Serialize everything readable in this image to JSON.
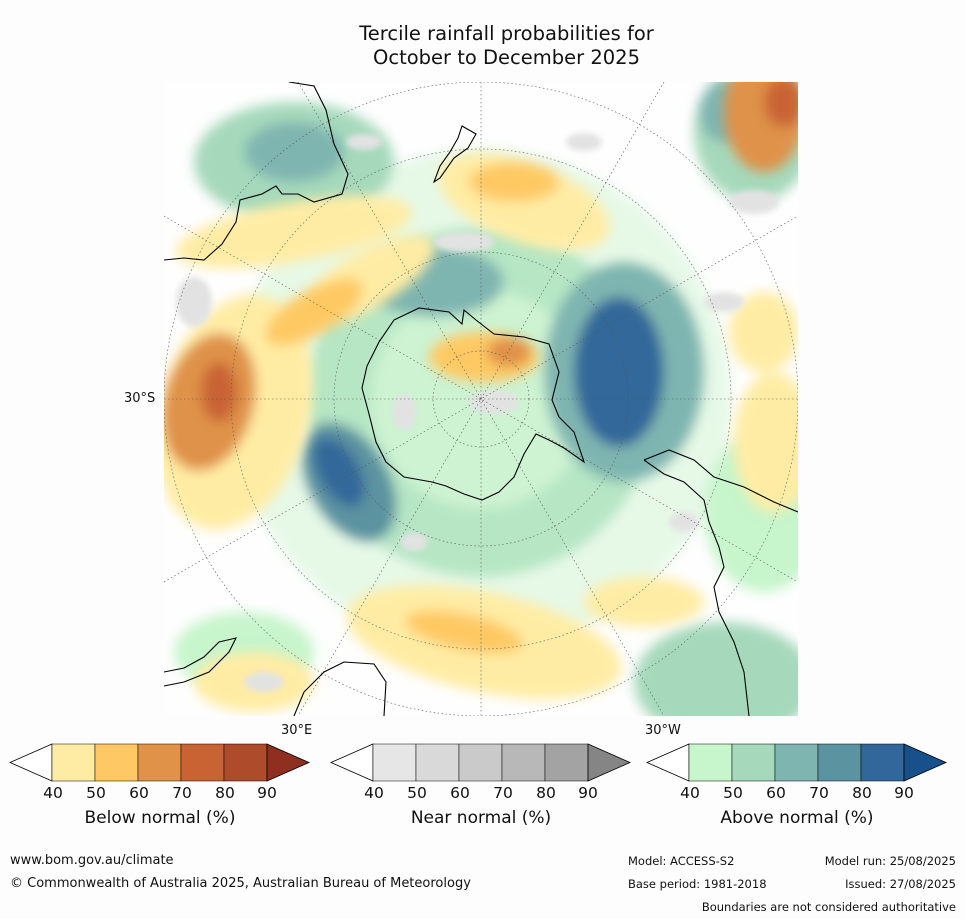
{
  "title": {
    "line1": "Tercile rainfall probabilities for",
    "line2": "October to December 2025"
  },
  "map": {
    "projection": "south-polar-stereographic",
    "latitude_label": "30°S",
    "longitude_labels": [
      "30°E",
      "30°W"
    ]
  },
  "colorbars": [
    {
      "name": "below",
      "title": "Below normal (%)",
      "ticks": [
        "40",
        "50",
        "60",
        "70",
        "80",
        "90"
      ],
      "colors": [
        "#ffeca4",
        "#fec964",
        "#df9248",
        "#c96334",
        "#ad4b2a",
        "#8e2f1f"
      ]
    },
    {
      "name": "near",
      "title": "Near normal (%)",
      "ticks": [
        "40",
        "50",
        "60",
        "70",
        "80",
        "90"
      ],
      "colors": [
        "#e6e6e6",
        "#d9d9d9",
        "#cacaca",
        "#b8b8b8",
        "#a3a3a3",
        "#858585"
      ]
    },
    {
      "name": "above",
      "title": "Above normal (%)",
      "ticks": [
        "40",
        "50",
        "60",
        "70",
        "80",
        "90"
      ],
      "colors": [
        "#c7f5cc",
        "#a6d9bc",
        "#7fb5b0",
        "#5b93a0",
        "#31679a",
        "#17508a"
      ]
    }
  ],
  "footer": {
    "website": "www.bom.gov.au/climate",
    "copyright": "© Commonwealth of Australia 2025, Australian Bureau of Meteorology",
    "model": "Model: ACCESS-S2",
    "model_run": "Model run: 25/08/2025",
    "base_period": "Base period: 1981-2018",
    "issued": "Issued: 27/08/2025",
    "disclaimer": "Boundaries are not considered authoritative"
  }
}
